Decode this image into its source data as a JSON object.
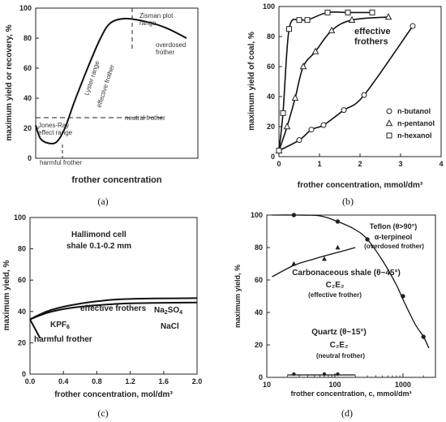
{
  "chart_data": [
    {
      "type": "line",
      "panel_caption": "(a)",
      "xlabel": "frother concentration",
      "ylabel": "maximum yield or recovery, %",
      "ylim": [
        0,
        100
      ],
      "yticks": [
        "0",
        "20",
        "40",
        "60",
        "80",
        "100"
      ],
      "x_ticks_shown": false,
      "curve_points": [
        [
          0.0,
          22
        ],
        [
          0.03,
          13
        ],
        [
          0.08,
          10
        ],
        [
          0.13,
          11
        ],
        [
          0.18,
          20
        ],
        [
          0.24,
          38
        ],
        [
          0.32,
          60
        ],
        [
          0.4,
          80
        ],
        [
          0.46,
          90
        ],
        [
          0.55,
          93
        ],
        [
          0.68,
          91
        ],
        [
          0.8,
          87
        ],
        [
          0.93,
          80
        ]
      ],
      "annotations": {
        "zisman": "Zisman plot\nrange",
        "overdosed": "overdosed\nfrother",
        "lyster": "Lyster range",
        "effective": "effective frother",
        "neutral": "neutral frother",
        "jones_ray": "Jones-Ray\neffect range",
        "harmful": "harmful frother"
      }
    },
    {
      "type": "scatter",
      "panel_caption": "(b)",
      "xlabel": "frother concentration, mmol/dm³",
      "ylabel": "maximum yield of coal, %",
      "xlim": [
        0,
        4
      ],
      "ylim": [
        0,
        100
      ],
      "xticks": [
        "0",
        "1",
        "2",
        "3",
        "4"
      ],
      "yticks": [
        "0",
        "20",
        "40",
        "60",
        "80",
        "100"
      ],
      "annotation": "effective\nfrothers",
      "series": [
        {
          "name": "n-butanol",
          "marker": "circle",
          "x": [
            0,
            0.5,
            0.8,
            1.1,
            1.6,
            2.1,
            3.3
          ],
          "y": [
            4,
            11,
            18,
            21,
            31,
            41,
            87
          ]
        },
        {
          "name": "n-pentanol",
          "marker": "triangle",
          "x": [
            0,
            0.2,
            0.4,
            0.6,
            0.9,
            1.3,
            1.8,
            2.7
          ],
          "y": [
            4,
            20,
            39,
            60,
            70,
            84,
            91,
            93
          ]
        },
        {
          "name": "n-hexanol",
          "marker": "square",
          "x": [
            0,
            0.1,
            0.25,
            0.5,
            0.7,
            1.2,
            1.7,
            2.3
          ],
          "y": [
            4,
            29,
            85,
            91,
            91,
            96,
            96,
            96
          ]
        }
      ]
    },
    {
      "type": "line",
      "panel_caption": "(c)",
      "xlabel": "frother concentration, mol/dm³",
      "ylabel": "maximum yield, %",
      "xlim": [
        0,
        2.0
      ],
      "ylim": [
        0,
        100
      ],
      "xticks": [
        "0.0",
        "0.4",
        "0.8",
        "1.2",
        "1.6",
        "2.0"
      ],
      "yticks": [
        "0",
        "20",
        "40",
        "60",
        "80",
        "100"
      ],
      "title_lines": [
        "Hallimond cell",
        "shale 0.1-0.2 mm"
      ],
      "annotation_effective": "effective  frothers",
      "annotation_harmful": "harmful frother",
      "series": [
        {
          "name": "Na2SO4",
          "x": [
            0,
            0.2,
            0.4,
            0.6,
            0.8,
            1.0,
            1.2,
            1.5,
            2.0
          ],
          "y": [
            35,
            40,
            43,
            45,
            46.5,
            47.5,
            48,
            48.3,
            48.5
          ]
        },
        {
          "name": "NaCl",
          "x": [
            0,
            0.2,
            0.4,
            0.6,
            0.8,
            1.0,
            1.2,
            1.5,
            2.0
          ],
          "y": [
            35,
            39,
            41.5,
            43,
            44,
            44.7,
            45.2,
            45.5,
            45.7
          ]
        },
        {
          "name": "KPF6",
          "x": [
            0,
            0.06,
            0.12
          ],
          "y": [
            35,
            29,
            23
          ]
        }
      ],
      "label_na2so4": "Na",
      "label_na2so4_sub": "2",
      "label_na2so4_end": "SO",
      "label_na2so4_sub2": "4",
      "label_nacl": "NaCl",
      "label_kpf": "KPF",
      "label_kpf_sub": "6"
    },
    {
      "type": "scatter",
      "panel_caption": "(d)",
      "xlabel": "frother concentration, c, mmol/dm³",
      "ylabel": "maximum yield, %",
      "xscale": "log",
      "xlim": [
        10,
        3000
      ],
      "ylim": [
        0,
        100
      ],
      "xticks": [
        "10",
        "100",
        "1000"
      ],
      "yticks": [
        "0",
        "20",
        "40",
        "60",
        "80",
        "100"
      ],
      "series": [
        {
          "name": "Teflon (θ>90°)  α-terpineol (overdosed frother)",
          "marker": "circle",
          "x": [
            25,
            110,
            300,
            1000,
            2000
          ],
          "y": [
            100,
            96,
            85,
            50,
            25
          ]
        },
        {
          "name": "Carbonaceous shale (θ~45°)  C₂E₂ (effective frother)",
          "marker": "triangle",
          "x": [
            25,
            70,
            110
          ],
          "y": [
            70,
            73,
            80
          ]
        },
        {
          "name": "Quartz (θ~15°)  C₂E₂ (neutral frother)",
          "marker": "circle",
          "x": [
            25,
            70,
            110
          ],
          "y": [
            2,
            2,
            2
          ]
        }
      ],
      "labels": {
        "teflon1": "Teflon (θ>90°)",
        "teflon2": "α-terpineol",
        "teflon3": "(overdosed frother)",
        "shale1": "Carbonaceous shale (θ~45°)",
        "shale2": "C₂E₂",
        "shale3": "(effective frother)",
        "quartz1": "Quartz (θ~15°)",
        "quartz2": "C₂E₂",
        "quartz3": "(neutral frother)"
      }
    }
  ]
}
